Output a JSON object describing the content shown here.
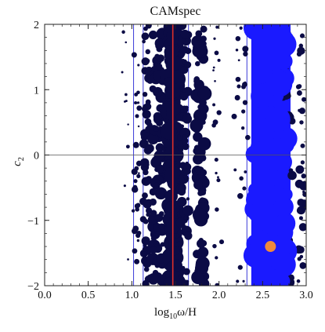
{
  "chart_data": {
    "type": "scatter",
    "title": "CAMspec",
    "xlabel": "log",
    "xlabel_sub": "10",
    "xlabel_tail": "ω/H",
    "ylabel": "c",
    "ylabel_sub": "2",
    "xlim": [
      0.0,
      3.0
    ],
    "ylim": [
      -2,
      2
    ],
    "x_ticks": [
      0.0,
      0.5,
      1.0,
      1.5,
      2.0,
      2.5,
      3.0
    ],
    "x_tick_labels": [
      "0.0",
      "0.5",
      "1.0",
      "1.5",
      "2.0",
      "2.5",
      "3.0"
    ],
    "y_ticks": [
      -2,
      -1,
      0,
      1,
      2
    ],
    "y_tick_labels": [
      "−2",
      "−1",
      "0",
      "1",
      "2"
    ],
    "grid": false,
    "reference_line_y": 0,
    "band_lines_x": [
      1.02,
      1.13,
      1.65,
      2.32
    ],
    "best_fit_line_x": 1.47,
    "best_fit_point": {
      "x": 2.59,
      "y": -1.4
    },
    "dense_band": {
      "x_min": 2.37,
      "x_max": 2.82,
      "color": "#1a1aff"
    },
    "red_line_color": "#e0302a",
    "band_line_color": "#3a3ad8",
    "point_color": "#0b0b45",
    "best_fit_color": "#f08a3c",
    "column_clusters": [
      {
        "x_center": 1.05,
        "spread": 0.035,
        "count": 30,
        "min_r": 1.2,
        "max_r": 4.5
      },
      {
        "x_center": 1.17,
        "spread": 0.04,
        "count": 60,
        "min_r": 2,
        "max_r": 6
      },
      {
        "x_center": 1.3,
        "spread": 0.06,
        "count": 90,
        "min_r": 3,
        "max_r": 8
      },
      {
        "x_center": 1.47,
        "spread": 0.05,
        "count": 110,
        "min_r": 6,
        "max_r": 12
      },
      {
        "x_center": 1.6,
        "spread": 0.05,
        "count": 70,
        "min_r": 2,
        "max_r": 7
      },
      {
        "x_center": 1.79,
        "spread": 0.05,
        "count": 80,
        "min_r": 3,
        "max_r": 9
      },
      {
        "x_center": 1.98,
        "spread": 0.05,
        "count": 20,
        "min_r": 1.2,
        "max_r": 3.5
      },
      {
        "x_center": 2.25,
        "spread": 0.08,
        "count": 25,
        "min_r": 1.2,
        "max_r": 4
      },
      {
        "x_center": 2.95,
        "spread": 0.04,
        "count": 35,
        "min_r": 1.5,
        "max_r": 6
      },
      {
        "x_center": 2.78,
        "spread": 0.06,
        "count": 40,
        "min_r": 2,
        "max_r": 7
      },
      {
        "x_center": 0.92,
        "spread": 0.04,
        "count": 10,
        "min_r": 1,
        "max_r": 2.5
      }
    ]
  }
}
